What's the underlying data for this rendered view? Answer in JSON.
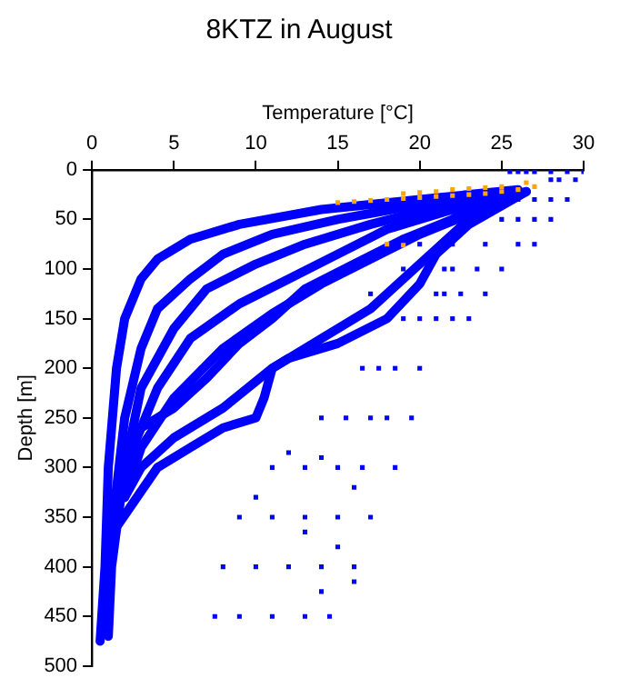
{
  "chart_data": {
    "type": "line",
    "title": "8KTZ in August",
    "xlabel": "Temperature [°C]",
    "ylabel": "Depth [m]",
    "xlim": [
      0,
      30
    ],
    "xticks": [
      0,
      5,
      10,
      15,
      20,
      25,
      30
    ],
    "ylim": [
      500,
      0
    ],
    "yticks": [
      0,
      50,
      100,
      150,
      200,
      250,
      300,
      350,
      400,
      450,
      500
    ],
    "grid": false,
    "legend": false,
    "marker": "square",
    "series": [
      {
        "marker": "none",
        "color": "#0000ff",
        "x": [
          26,
          20,
          14,
          9,
          6,
          4,
          3,
          2,
          1.5,
          1,
          0.8,
          0.5
        ],
        "values": [
          20,
          30,
          40,
          55,
          70,
          90,
          110,
          150,
          200,
          300,
          400,
          475
        ]
      },
      {
        "marker": "none",
        "color": "#0000ff",
        "x": [
          25.5,
          20,
          15,
          11,
          8,
          6,
          4,
          3,
          2,
          1.3,
          1
        ],
        "values": [
          22,
          35,
          50,
          65,
          85,
          110,
          140,
          180,
          250,
          350,
          450
        ]
      },
      {
        "marker": "none",
        "color": "#0000ff",
        "x": [
          26.5,
          21,
          17,
          13,
          10,
          7,
          5,
          3,
          2,
          1.2,
          1
        ],
        "values": [
          22,
          38,
          55,
          75,
          95,
          120,
          160,
          220,
          300,
          400,
          470
        ]
      },
      {
        "marker": "none",
        "color": "#0000ff",
        "x": [
          25,
          22,
          18,
          15,
          12,
          9,
          6,
          4,
          2.5,
          1.5
        ],
        "values": [
          23,
          40,
          60,
          85,
          110,
          135,
          170,
          220,
          280,
          350
        ]
      },
      {
        "marker": "none",
        "color": "#0000ff",
        "x": [
          26,
          23,
          20,
          17,
          14,
          11,
          8,
          5,
          3,
          2
        ],
        "values": [
          24,
          45,
          65,
          90,
          115,
          145,
          180,
          230,
          280,
          330
        ]
      },
      {
        "marker": "none",
        "color": "#0000ff",
        "x": [
          25.5,
          23,
          21,
          19,
          17,
          14,
          11,
          8,
          5,
          3,
          2
        ],
        "values": [
          28,
          50,
          80,
          110,
          140,
          170,
          200,
          240,
          270,
          300,
          330
        ]
      },
      {
        "marker": "none",
        "color": "#0000ff",
        "x": [
          26.5,
          23,
          21,
          20,
          18,
          15,
          12,
          11,
          10.5,
          10,
          8,
          6,
          4,
          1.5
        ],
        "values": [
          22,
          55,
          85,
          115,
          150,
          175,
          190,
          200,
          230,
          250,
          260,
          280,
          300,
          360
        ]
      },
      {
        "marker": "none",
        "color": "#0000ff",
        "x": [
          24.5,
          22,
          19,
          16,
          13,
          11,
          9,
          7,
          5,
          3,
          2
        ],
        "values": [
          25,
          50,
          70,
          95,
          120,
          150,
          175,
          210,
          240,
          260,
          290
        ]
      },
      {
        "type": "scatter",
        "color": "#0000ff",
        "x": [
          25.5,
          26,
          26.5,
          27,
          28,
          29,
          30,
          28,
          28.5,
          29.5,
          26,
          27,
          28,
          29,
          25,
          26,
          27,
          28,
          20,
          22,
          24,
          26,
          27,
          19,
          21.5,
          22,
          23.5,
          25,
          17,
          21,
          21.5,
          22.5,
          24,
          19,
          20,
          21,
          22,
          23,
          16.5,
          17.5,
          18.5,
          20,
          14,
          15.5,
          17,
          18,
          19.5,
          11,
          13,
          15,
          16.5,
          18.5,
          9,
          11,
          13,
          15,
          17,
          8,
          10,
          12,
          14,
          16,
          7.5,
          9,
          11,
          13,
          14.5,
          12,
          14,
          16,
          13,
          15,
          10,
          14,
          16
        ],
        "values": [
          2,
          2,
          2,
          2,
          2,
          2,
          2,
          10,
          10,
          10,
          30,
          30,
          30,
          30,
          50,
          50,
          50,
          50,
          75,
          75,
          75,
          75,
          75,
          100,
          100,
          100,
          100,
          100,
          125,
          125,
          125,
          125,
          125,
          150,
          150,
          150,
          150,
          150,
          200,
          200,
          200,
          200,
          250,
          250,
          250,
          250,
          250,
          300,
          300,
          300,
          300,
          300,
          350,
          350,
          350,
          350,
          350,
          400,
          400,
          400,
          400,
          400,
          450,
          450,
          450,
          450,
          450,
          285,
          290,
          320,
          365,
          380,
          330,
          425,
          415
        ]
      },
      {
        "type": "scatter",
        "color": "#ffa500",
        "x": [
          15,
          16,
          17,
          18,
          19,
          20,
          21,
          22,
          23,
          24,
          25,
          26,
          27,
          19,
          20,
          21,
          22,
          23,
          24,
          25,
          26.5,
          18,
          19
        ],
        "values": [
          33,
          32,
          31,
          30,
          29,
          28,
          27,
          26,
          25,
          24,
          22,
          20,
          17,
          24,
          23,
          22,
          20,
          19,
          18,
          17,
          13,
          75,
          76
        ]
      }
    ]
  }
}
